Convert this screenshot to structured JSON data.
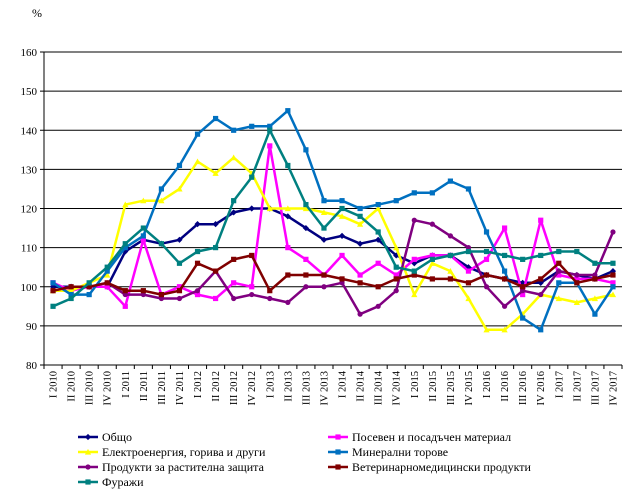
{
  "chart_data": {
    "type": "line",
    "y_unit": "%",
    "ylim": [
      80,
      160
    ],
    "yticks": [
      80,
      90,
      100,
      110,
      120,
      130,
      140,
      150,
      160
    ],
    "grid": "horizontal",
    "legend_position": "bottom",
    "categories": [
      "I 2010",
      "II 2010",
      "III 2010",
      "IV 2010",
      "I 2011",
      "II 2011",
      "III 2011",
      "IV 2011",
      "I 2012",
      "II 2012",
      "III 2012",
      "IV 2012",
      "I 2013",
      "II 2013",
      "III 2013",
      "IV 2013",
      "I 2014",
      "II 2014",
      "III 2014",
      "IV 2014",
      "I 2015",
      "II 2015",
      "III 2015",
      "IV 2015",
      "I 2016",
      "II 2016",
      "III 2016",
      "IV 2016",
      "I 2017",
      "II 2017",
      "III 2017",
      "IV 2017"
    ],
    "series": [
      {
        "name": "Общо",
        "color": "#000080",
        "marker": "diamond",
        "values": [
          100,
          100,
          100,
          100,
          109,
          112,
          111,
          112,
          116,
          116,
          119,
          120,
          120,
          118,
          115,
          112,
          113,
          111,
          112,
          108,
          106,
          108,
          108,
          105,
          103,
          102,
          101,
          101,
          104,
          103,
          102,
          104
        ]
      },
      {
        "name": "Посевен и посадъчен материал",
        "color": "#ff00ff",
        "marker": "square",
        "values": [
          101,
          99,
          100,
          100,
          95,
          112,
          98,
          100,
          98,
          97,
          101,
          100,
          136,
          110,
          107,
          103,
          108,
          103,
          106,
          103,
          107,
          108,
          108,
          104,
          107,
          115,
          98,
          117,
          103,
          102,
          102,
          101
        ]
      },
      {
        "name": "Електроенергия, горива и други",
        "color": "#ffff00",
        "marker": "triangle",
        "values": [
          99,
          99,
          101,
          103,
          121,
          122,
          122,
          125,
          132,
          129,
          133,
          129,
          120,
          120,
          120,
          119,
          118,
          116,
          120,
          110,
          98,
          106,
          104,
          97,
          89,
          89,
          93,
          98,
          97,
          96,
          97,
          98
        ]
      },
      {
        "name": "Минерални торове",
        "color": "#0070c0",
        "marker": "square",
        "values": [
          101,
          98,
          98,
          104,
          110,
          113,
          125,
          131,
          139,
          143,
          140,
          141,
          141,
          145,
          135,
          122,
          122,
          120,
          121,
          122,
          124,
          124,
          127,
          125,
          114,
          104,
          92,
          89,
          101,
          101,
          93,
          100
        ]
      },
      {
        "name": "Продукти за растителна защита",
        "color": "#800080",
        "marker": "circle",
        "values": [
          99,
          100,
          100,
          101,
          98,
          98,
          97,
          97,
          99,
          104,
          97,
          98,
          97,
          96,
          100,
          100,
          101,
          93,
          95,
          99,
          117,
          116,
          113,
          110,
          100,
          95,
          99,
          98,
          104,
          103,
          103,
          114
        ]
      },
      {
        "name": "Ветеринарномедицински продукти",
        "color": "#800000",
        "marker": "square",
        "values": [
          99,
          100,
          100,
          101,
          99,
          99,
          98,
          99,
          106,
          104,
          107,
          108,
          99,
          103,
          103,
          103,
          102,
          101,
          100,
          102,
          103,
          102,
          102,
          101,
          103,
          102,
          100,
          102,
          106,
          101,
          102,
          103
        ]
      },
      {
        "name": "Фуражи",
        "color": "#008080",
        "marker": "square",
        "values": [
          95,
          97,
          101,
          105,
          111,
          115,
          111,
          106,
          109,
          110,
          122,
          128,
          140,
          131,
          121,
          115,
          120,
          118,
          114,
          105,
          104,
          107,
          108,
          109,
          109,
          108,
          107,
          108,
          109,
          109,
          106,
          106
        ]
      }
    ]
  }
}
